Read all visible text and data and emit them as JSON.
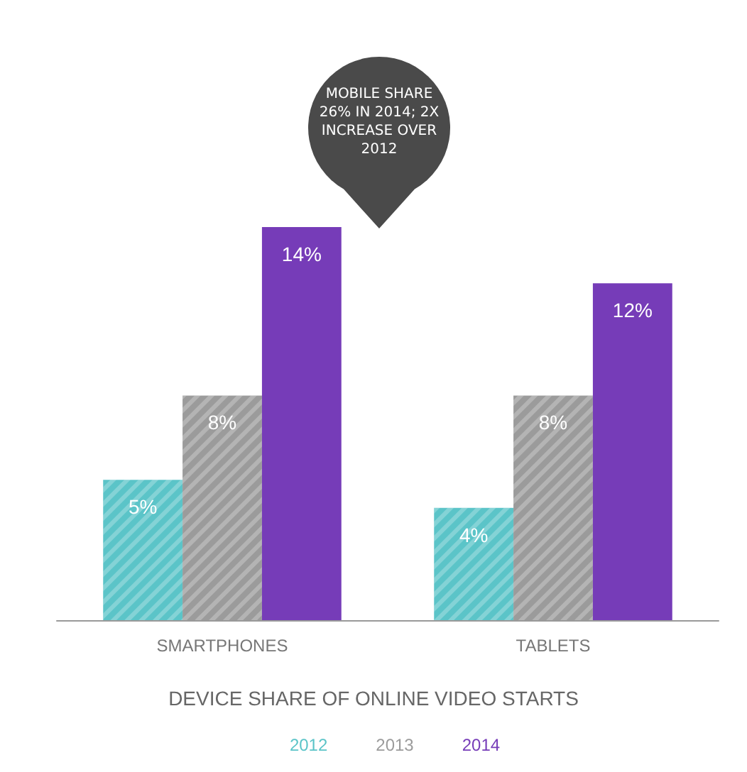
{
  "chart_data": {
    "type": "bar",
    "title": "DEVICE SHARE OF ONLINE VIDEO STARTS",
    "annotations": [
      "MOBILE SHARE 26% IN 2014; 2X INCREASE OVER 2012"
    ],
    "categories": [
      "SMARTPHONES",
      "TABLETS"
    ],
    "series": [
      {
        "name": "2012",
        "color": "#5bc4c8",
        "values": [
          5,
          4
        ],
        "value_labels": [
          "5%",
          "4%"
        ]
      },
      {
        "name": "2013",
        "color": "#9b9b9b",
        "values": [
          8,
          8
        ],
        "value_labels": [
          "8%",
          "8%"
        ]
      },
      {
        "name": "2014",
        "color": "#763cb8",
        "values": [
          14,
          12
        ],
        "value_labels": [
          "14%",
          "12%"
        ]
      }
    ],
    "legend": "bottom"
  }
}
